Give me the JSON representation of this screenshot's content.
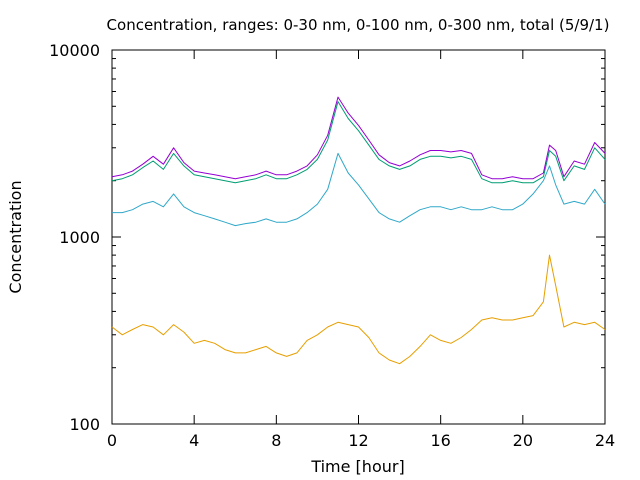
{
  "chart_data": {
    "type": "line",
    "title": "Concentration, ranges: 0-30 nm, 0-100 nm, 0-300 nm, total (5/9/1)",
    "xlabel": "Time [hour]",
    "ylabel": "Concentration",
    "xlim": [
      0,
      24
    ],
    "ylim": [
      100,
      10000
    ],
    "yscale": "log",
    "grid": false,
    "legend": "none",
    "x_ticks": [
      0,
      4,
      8,
      12,
      16,
      20,
      24
    ],
    "x_tick_labels": [
      "0",
      "4",
      "8",
      "12",
      "16",
      "20",
      "24"
    ],
    "y_ticks": [
      100,
      1000,
      10000
    ],
    "y_tick_labels": [
      "100",
      "1000",
      "10000"
    ],
    "series": [
      {
        "color": "#e69f00",
        "x": [
          0,
          0.5,
          1,
          1.5,
          2,
          2.5,
          3,
          3.5,
          4,
          4.5,
          5,
          5.5,
          6,
          6.5,
          7,
          7.5,
          8,
          8.5,
          9,
          9.5,
          10,
          10.5,
          11,
          11.5,
          12,
          12.5,
          13,
          13.5,
          14,
          14.5,
          15,
          15.5,
          16,
          16.5,
          17,
          17.5,
          18,
          18.5,
          19,
          19.5,
          20,
          20.5,
          21,
          21.3,
          21.6,
          22,
          22.5,
          23,
          23.5,
          24
        ],
        "values": [
          330,
          300,
          320,
          340,
          330,
          300,
          340,
          310,
          270,
          280,
          270,
          250,
          240,
          240,
          250,
          260,
          240,
          230,
          240,
          280,
          300,
          330,
          350,
          340,
          330,
          290,
          240,
          220,
          210,
          230,
          260,
          300,
          280,
          270,
          290,
          320,
          360,
          370,
          360,
          360,
          370,
          380,
          450,
          800,
          550,
          330,
          350,
          340,
          350,
          320
        ]
      },
      {
        "color": "#30a8c8",
        "x": [
          0,
          0.5,
          1,
          1.5,
          2,
          2.5,
          3,
          3.5,
          4,
          4.5,
          5,
          5.5,
          6,
          6.5,
          7,
          7.5,
          8,
          8.5,
          9,
          9.5,
          10,
          10.5,
          11,
          11.5,
          12,
          12.5,
          13,
          13.5,
          14,
          14.5,
          15,
          15.5,
          16,
          16.5,
          17,
          17.5,
          18,
          18.5,
          19,
          19.5,
          20,
          20.5,
          21,
          21.3,
          21.6,
          22,
          22.5,
          23,
          23.5,
          24
        ],
        "values": [
          1350,
          1350,
          1400,
          1500,
          1550,
          1450,
          1700,
          1450,
          1350,
          1300,
          1250,
          1200,
          1150,
          1180,
          1200,
          1250,
          1200,
          1200,
          1250,
          1350,
          1500,
          1800,
          2800,
          2200,
          1900,
          1600,
          1350,
          1250,
          1200,
          1300,
          1400,
          1450,
          1450,
          1400,
          1450,
          1400,
          1400,
          1450,
          1400,
          1400,
          1500,
          1700,
          2000,
          2400,
          1900,
          1500,
          1550,
          1500,
          1800,
          1500
        ]
      },
      {
        "color": "#009e73",
        "x": [
          0,
          0.5,
          1,
          1.5,
          2,
          2.5,
          3,
          3.5,
          4,
          4.5,
          5,
          5.5,
          6,
          6.5,
          7,
          7.5,
          8,
          8.5,
          9,
          9.5,
          10,
          10.5,
          11,
          11.5,
          12,
          12.5,
          13,
          13.5,
          14,
          14.5,
          15,
          15.5,
          16,
          16.5,
          17,
          17.5,
          18,
          18.5,
          19,
          19.5,
          20,
          20.5,
          21,
          21.3,
          21.6,
          22,
          22.5,
          23,
          23.5,
          24
        ],
        "values": [
          2000,
          2050,
          2150,
          2350,
          2550,
          2300,
          2800,
          2400,
          2150,
          2100,
          2050,
          2000,
          1950,
          2000,
          2050,
          2150,
          2050,
          2050,
          2150,
          2300,
          2600,
          3300,
          5300,
          4300,
          3700,
          3100,
          2600,
          2400,
          2300,
          2400,
          2600,
          2700,
          2700,
          2650,
          2700,
          2600,
          2050,
          1950,
          1950,
          2000,
          1950,
          1950,
          2100,
          2900,
          2700,
          2000,
          2400,
          2300,
          3000,
          2600
        ]
      },
      {
        "color": "#9400d3",
        "x": [
          0,
          0.5,
          1,
          1.5,
          2,
          2.5,
          3,
          3.5,
          4,
          4.5,
          5,
          5.5,
          6,
          6.5,
          7,
          7.5,
          8,
          8.5,
          9,
          9.5,
          10,
          10.5,
          11,
          11.5,
          12,
          12.5,
          13,
          13.5,
          14,
          14.5,
          15,
          15.5,
          16,
          16.5,
          17,
          17.5,
          18,
          18.5,
          19,
          19.5,
          20,
          20.5,
          21,
          21.3,
          21.6,
          22,
          22.5,
          23,
          23.5,
          24
        ],
        "values": [
          2100,
          2150,
          2250,
          2450,
          2700,
          2450,
          3000,
          2500,
          2250,
          2200,
          2150,
          2100,
          2050,
          2100,
          2150,
          2250,
          2150,
          2150,
          2250,
          2400,
          2750,
          3500,
          5600,
          4600,
          3950,
          3300,
          2750,
          2500,
          2400,
          2550,
          2750,
          2900,
          2900,
          2850,
          2900,
          2800,
          2150,
          2050,
          2050,
          2100,
          2050,
          2050,
          2200,
          3100,
          2900,
          2100,
          2550,
          2450,
          3200,
          2800
        ]
      }
    ]
  }
}
